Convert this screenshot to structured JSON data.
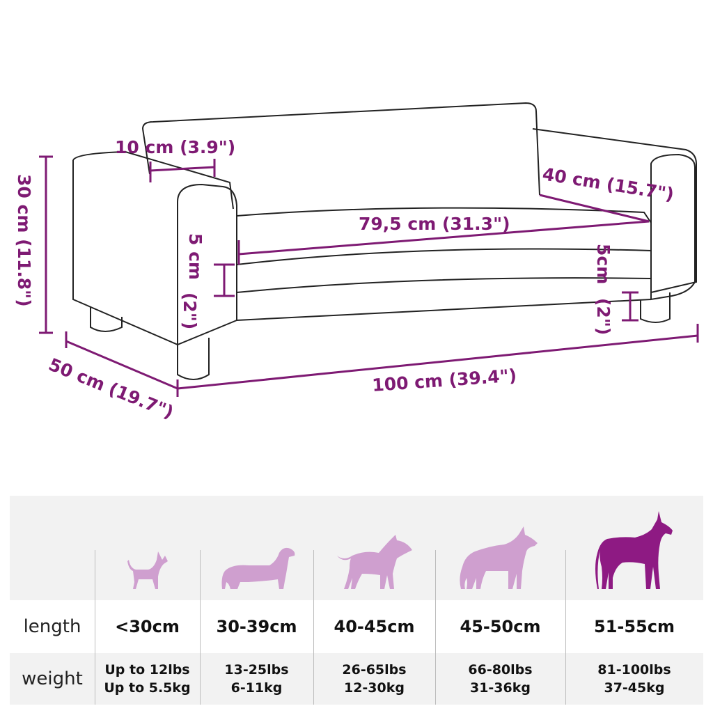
{
  "dimensions": {
    "backrest_depth": "10 cm (3.9\")",
    "height": "30 cm (11.8\")",
    "seat_depth": "40 cm (15.7\")",
    "seat_width": "79,5 cm (31.3\")",
    "cushion_left": "5 cm",
    "cushion_left_in": "(2\")",
    "cushion_right": "5cm",
    "cushion_right_in": "(2\")",
    "depth": "50 cm (19.7\")",
    "width": "100 cm (39.4\")"
  },
  "colors": {
    "dimension": "#7e1a73",
    "dog_light": "#cf9fcf",
    "dog_dark": "#8e1a83",
    "band": "#f2f2f2"
  },
  "size_table": {
    "row_labels": {
      "length": "length",
      "weight": "weight"
    },
    "columns": [
      {
        "length": "<30cm",
        "weight_lbs": "Up to 12lbs",
        "weight_kg": "Up to 5.5kg",
        "highlight": false
      },
      {
        "length": "30-39cm",
        "weight_lbs": "13-25lbs",
        "weight_kg": "6-11kg",
        "highlight": false
      },
      {
        "length": "40-45cm",
        "weight_lbs": "26-65lbs",
        "weight_kg": "12-30kg",
        "highlight": false
      },
      {
        "length": "45-50cm",
        "weight_lbs": "66-80lbs",
        "weight_kg": "31-36kg",
        "highlight": false
      },
      {
        "length": "51-55cm",
        "weight_lbs": "81-100lbs",
        "weight_kg": "37-45kg",
        "highlight": true
      }
    ]
  }
}
